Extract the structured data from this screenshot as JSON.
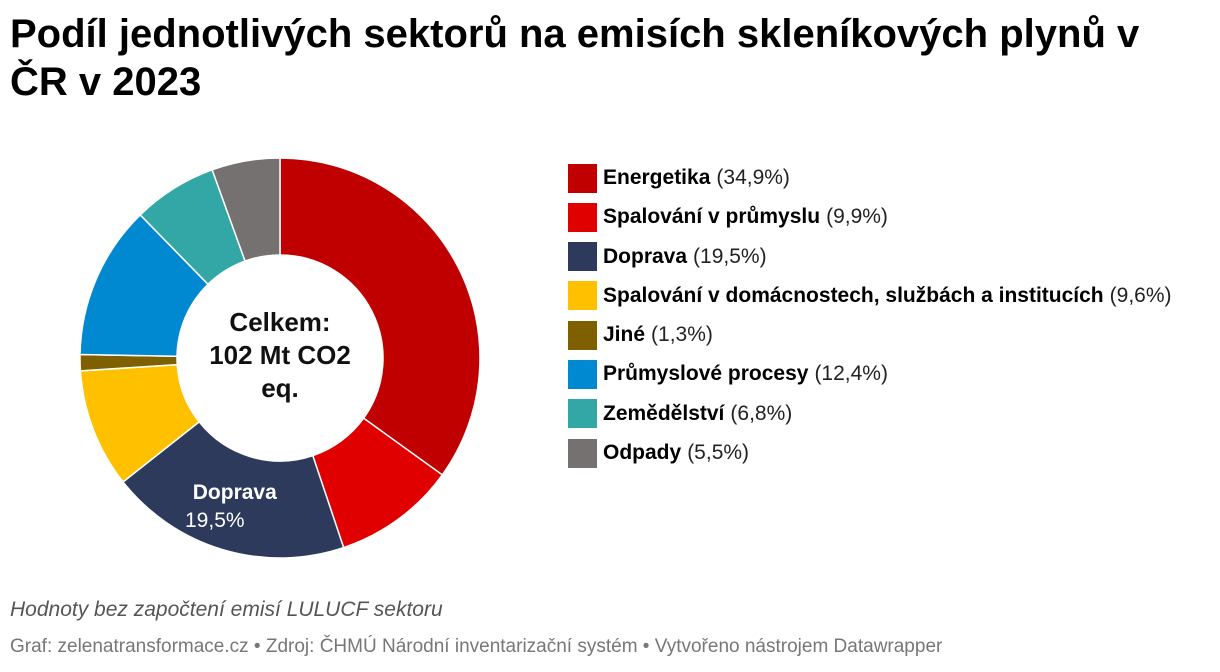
{
  "title": "Podíl jednotlivých sektorů na emisích skleníkových plynů v ČR v 2023",
  "note": "Hodnoty bez započtení emisí LULUCF sektoru",
  "source": "Graf: zelenatransformace.cz • Zdroj: ČHMÚ Národní inventarizační systém • Vytvořeno nástrojem Datawrapper",
  "chart_data": {
    "type": "pie",
    "donut": true,
    "center_label": [
      "Celkem:",
      "102 Mt CO2",
      "eq."
    ],
    "legend_placement": "right",
    "slices": [
      {
        "name": "Energetika",
        "value": 34.9,
        "label": "(34,9%)",
        "color": "#C00000"
      },
      {
        "name": "Spalování v průmyslu",
        "value": 9.9,
        "label": "(9,9%)",
        "color": "#E00000"
      },
      {
        "name": "Doprava",
        "value": 19.5,
        "label": "(19,5%)",
        "color": "#2D3A5C"
      },
      {
        "name": "Spalování v domácnostech, službách a institucích",
        "value": 9.6,
        "label": "(9,6%)",
        "color": "#FFC000"
      },
      {
        "name": "Jiné",
        "value": 1.3,
        "label": "(1,3%)",
        "color": "#7F6000"
      },
      {
        "name": "Průmyslové procesy",
        "value": 12.4,
        "label": "(12,4%)",
        "color": "#0088D1"
      },
      {
        "name": "Zemědělství",
        "value": 6.8,
        "label": "(6,8%)",
        "color": "#33A6A6"
      },
      {
        "name": "Odpady",
        "value": 5.5,
        "label": "(5,5%)",
        "color": "#767171"
      }
    ],
    "slice_labels": [
      {
        "slice": "Doprava",
        "name": "Doprava",
        "value": "19,5%"
      }
    ]
  }
}
